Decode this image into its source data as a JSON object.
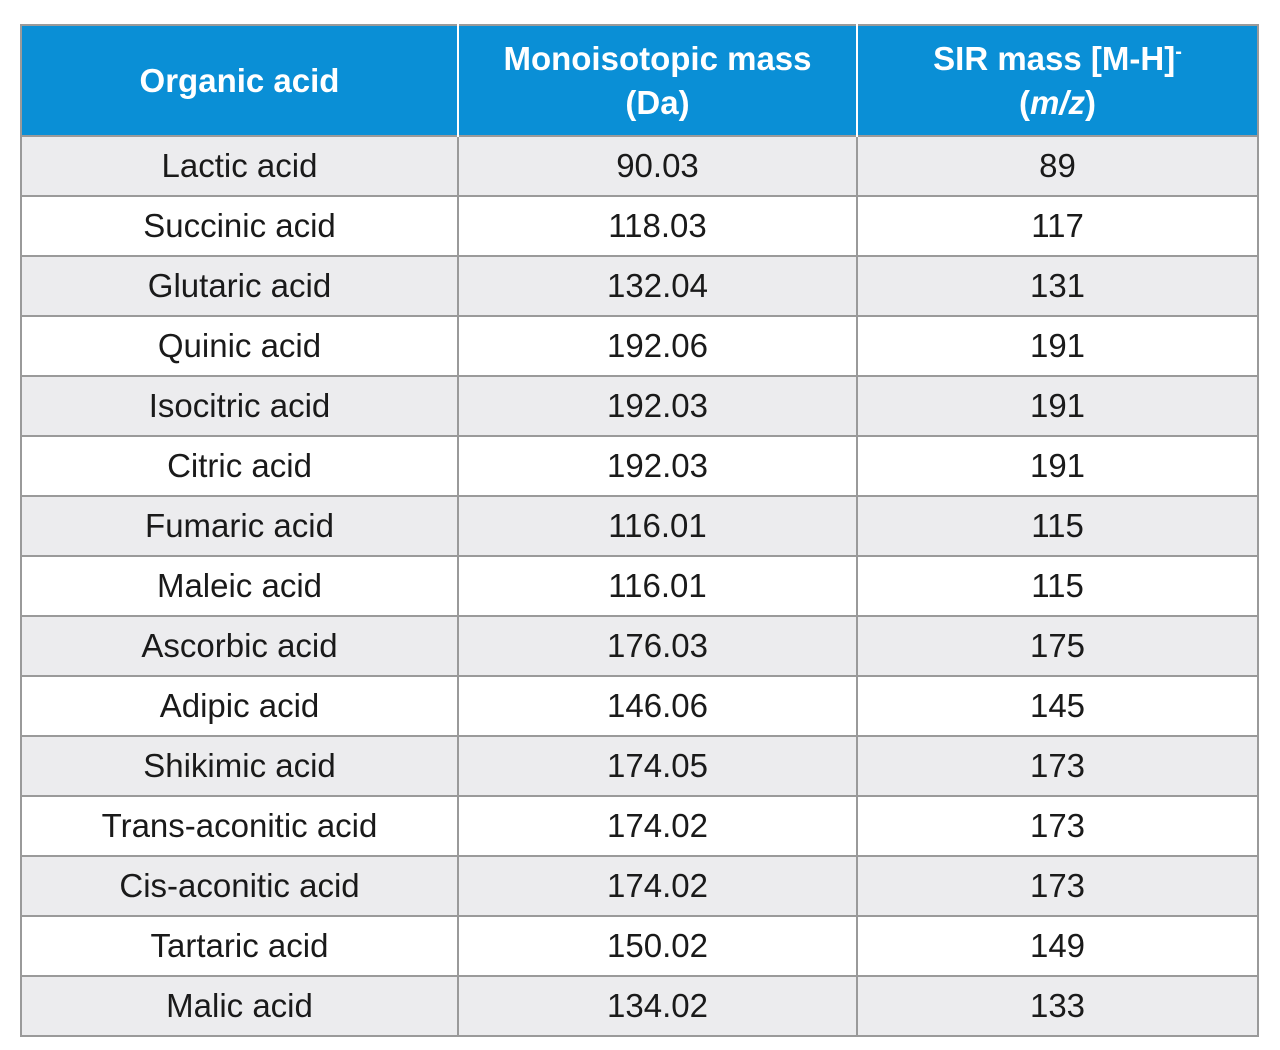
{
  "table": {
    "headers": {
      "col1": "Organic acid",
      "col2_line1": "Monoisotopic mass",
      "col2_line2": "(Da)",
      "col3_line1": "SIR mass [M-H]",
      "col3_sup": "-",
      "col3_line2_open": "(",
      "col3_line2_unit": "m/z",
      "col3_line2_close": ")"
    },
    "rows": [
      {
        "acid": "Lactic acid",
        "mono": "90.03",
        "sir": "89"
      },
      {
        "acid": "Succinic acid",
        "mono": "118.03",
        "sir": "117"
      },
      {
        "acid": "Glutaric acid",
        "mono": "132.04",
        "sir": "131"
      },
      {
        "acid": "Quinic acid",
        "mono": "192.06",
        "sir": "191"
      },
      {
        "acid": "Isocitric acid",
        "mono": "192.03",
        "sir": "191"
      },
      {
        "acid": "Citric acid",
        "mono": "192.03",
        "sir": "191"
      },
      {
        "acid": "Fumaric acid",
        "mono": "116.01",
        "sir": "115"
      },
      {
        "acid": "Maleic acid",
        "mono": "116.01",
        "sir": "115"
      },
      {
        "acid": "Ascorbic acid",
        "mono": "176.03",
        "sir": "175"
      },
      {
        "acid": "Adipic acid",
        "mono": "146.06",
        "sir": "145"
      },
      {
        "acid": "Shikimic acid",
        "mono": "174.05",
        "sir": "173"
      },
      {
        "acid": "Trans-aconitic acid",
        "mono": "174.02",
        "sir": "173"
      },
      {
        "acid": "Cis-aconitic acid",
        "mono": "174.02",
        "sir": "173"
      },
      {
        "acid": "Tartaric acid",
        "mono": "150.02",
        "sir": "149"
      },
      {
        "acid": "Malic acid",
        "mono": "134.02",
        "sir": "133"
      }
    ]
  },
  "colors": {
    "header_bg": "#0a8fd6",
    "header_text": "#ffffff",
    "row_shade": "#ececee",
    "border": "#9a9a9a"
  }
}
